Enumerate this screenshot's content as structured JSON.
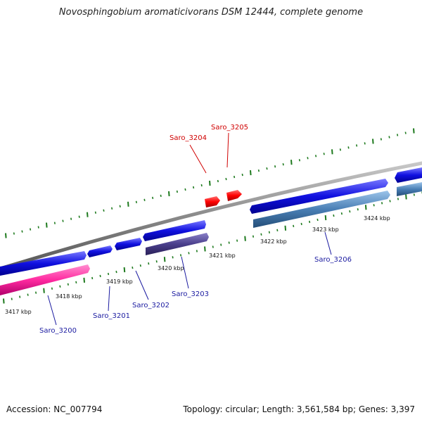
{
  "title": "Novosphingobium aromaticivorans DSM 12444, complete genome",
  "accession": "Accession: NC_007794",
  "summary": "Topology: circular; Length: 3,561,584 bp; Genes: 3,397",
  "colors": {
    "backbone": "#8a8a8a",
    "tick": "#1e7a1e",
    "forward_gene": "#1010e0",
    "reverse_gene_pink": "#ff2aa0",
    "reverse_gene_purple": "#4a3f8c",
    "reverse_gene_steel": "#4a7fb5",
    "rna_gene": "#ff0000",
    "label_blue": "#1a1aa0",
    "label_red": "#d00000"
  },
  "scale_ticks": [
    "3417 kbp",
    "3418 kbp",
    "3419 kbp",
    "3420 kbp",
    "3421 kbp",
    "3422 kbp",
    "3423 kbp",
    "3424 kbp"
  ],
  "genes": [
    {
      "label": "Saro_3200",
      "color": "label_blue"
    },
    {
      "label": "Saro_3201",
      "color": "label_blue"
    },
    {
      "label": "Saro_3202",
      "color": "label_blue"
    },
    {
      "label": "Saro_3203",
      "color": "label_blue"
    },
    {
      "label": "Saro_3204",
      "color": "label_red"
    },
    {
      "label": "Saro_3205",
      "color": "label_red"
    },
    {
      "label": "Saro_3206",
      "color": "label_blue"
    }
  ]
}
